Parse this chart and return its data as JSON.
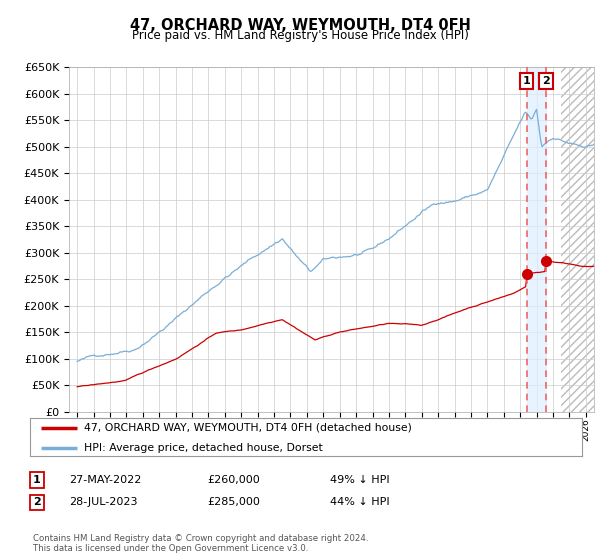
{
  "title": "47, ORCHARD WAY, WEYMOUTH, DT4 0FH",
  "subtitle": "Price paid vs. HM Land Registry's House Price Index (HPI)",
  "legend_line1": "47, ORCHARD WAY, WEYMOUTH, DT4 0FH (detached house)",
  "legend_line2": "HPI: Average price, detached house, Dorset",
  "transaction1_date": "27-MAY-2022",
  "transaction1_price": 260000,
  "transaction1_pct": "49% ↓ HPI",
  "transaction2_date": "28-JUL-2023",
  "transaction2_price": 285000,
  "transaction2_pct": "44% ↓ HPI",
  "transaction1_year": 2022.4,
  "transaction2_year": 2023.57,
  "future_cutoff": 2024.5,
  "footer": "Contains HM Land Registry data © Crown copyright and database right 2024.\nThis data is licensed under the Open Government Licence v3.0.",
  "hpi_color": "#7aaed6",
  "price_color": "#cc0000",
  "marker_color": "#cc0000",
  "dashed_line_color": "#ee6666",
  "highlight_color": "#ddeeff",
  "hatch_color": "#cccccc",
  "ylim": [
    0,
    650000
  ],
  "xlim_start": 1995,
  "xlim_end": 2026,
  "ytick_step": 50000,
  "background_color": "#ffffff",
  "grid_color": "#cccccc"
}
